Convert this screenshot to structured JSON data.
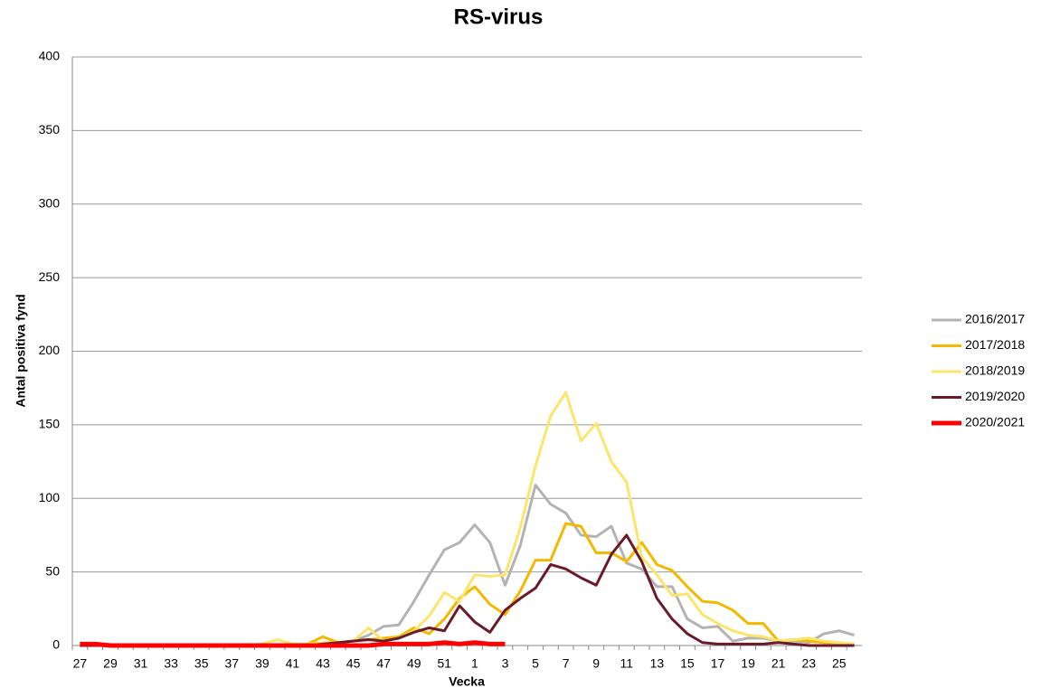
{
  "chart_data": {
    "type": "line",
    "title": "RS-virus",
    "x_label": "Vecka",
    "y_label": "Antal positiva fynd",
    "categories": [
      "27",
      null,
      "29",
      null,
      "31",
      null,
      "33",
      null,
      "35",
      null,
      "37",
      null,
      "39",
      null,
      "41",
      null,
      "43",
      null,
      "45",
      null,
      "47",
      null,
      "49",
      null,
      "51",
      null,
      "1",
      null,
      "3",
      null,
      "5",
      null,
      "7",
      null,
      "9",
      null,
      "11",
      null,
      "13",
      null,
      "15",
      null,
      "17",
      null,
      "19",
      null,
      "21",
      null,
      "23",
      null,
      "25",
      null
    ],
    "series": [
      {
        "name": "2016/2017",
        "color": "#b3b3b3",
        "width": 3,
        "values": [
          0,
          0,
          0,
          0,
          0,
          0,
          0,
          0,
          0,
          0,
          0,
          0,
          0,
          0,
          0,
          0,
          0,
          2,
          3,
          7,
          13,
          14,
          30,
          48,
          65,
          70,
          82,
          70,
          41,
          68,
          109,
          96,
          90,
          75,
          74,
          81,
          56,
          52,
          40,
          40,
          18,
          12,
          13,
          3,
          5,
          5,
          3,
          3,
          2,
          8,
          10,
          7
        ]
      },
      {
        "name": "2017/2018",
        "color": "#f5b800",
        "width": 3,
        "values": [
          0,
          0,
          0,
          0,
          0,
          0,
          0,
          0,
          0,
          0,
          0,
          0,
          0,
          0,
          0,
          1,
          6,
          2,
          3,
          4,
          5,
          6,
          12,
          8,
          18,
          32,
          40,
          28,
          21,
          37,
          58,
          58,
          83,
          81,
          63,
          63,
          57,
          70,
          55,
          51,
          40,
          30,
          29,
          24,
          15,
          15,
          3,
          4,
          3,
          2,
          2,
          1
        ]
      },
      {
        "name": "2018/2019",
        "color": "#fde46a",
        "width": 3,
        "values": [
          0,
          0,
          0,
          0,
          0,
          0,
          0,
          0,
          0,
          0,
          0,
          0,
          1,
          4,
          1,
          1,
          2,
          2,
          3,
          12,
          3,
          5,
          10,
          20,
          36,
          30,
          48,
          47,
          48,
          80,
          122,
          156,
          172,
          139,
          151,
          125,
          111,
          60,
          48,
          34,
          35,
          21,
          15,
          10,
          7,
          6,
          3,
          4,
          5,
          3,
          2,
          1
        ]
      },
      {
        "name": "2019/2020",
        "color": "#6b1a2a",
        "width": 3,
        "values": [
          0,
          0,
          0,
          0,
          0,
          0,
          0,
          0,
          0,
          0,
          0,
          0,
          0,
          0,
          0,
          0,
          1,
          2,
          3,
          4,
          3,
          5,
          9,
          12,
          10,
          27,
          16,
          9,
          24,
          32,
          39,
          55,
          52,
          46,
          41,
          62,
          75,
          57,
          32,
          18,
          8,
          2,
          1,
          1,
          1,
          1,
          2,
          1,
          0,
          0,
          0,
          0
        ]
      },
      {
        "name": "2020/2021",
        "color": "#ff0000",
        "width": 5,
        "values": [
          1,
          1,
          0,
          0,
          0,
          0,
          0,
          0,
          0,
          0,
          0,
          0,
          0,
          0,
          0,
          0,
          0,
          0,
          0,
          0,
          1,
          1,
          1,
          1,
          2,
          1,
          2,
          1,
          1,
          null,
          null,
          null,
          null,
          null,
          null,
          null,
          null,
          null,
          null,
          null,
          null,
          null,
          null,
          null,
          null,
          null,
          null,
          null,
          null,
          null,
          null,
          null
        ]
      }
    ],
    "ylim": [
      0,
      400
    ],
    "yticks": [
      0,
      50,
      100,
      150,
      200,
      250,
      300,
      350,
      400
    ],
    "grid": true,
    "legend": "right"
  }
}
